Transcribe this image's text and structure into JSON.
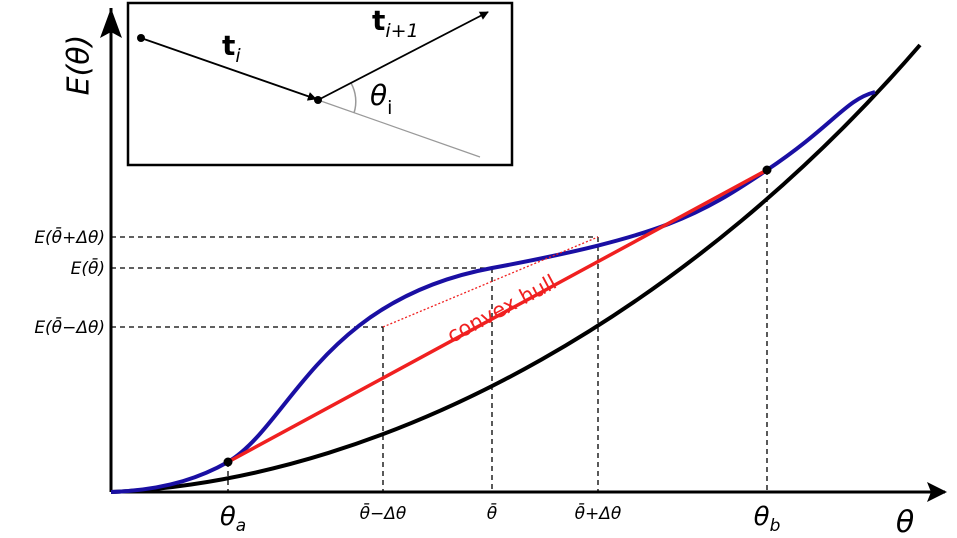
{
  "axes": {
    "y_title": "E(θ)",
    "x_title": "θ"
  },
  "y_labels": [
    "E(θ̄+Δθ)",
    "E(θ̄)",
    "E(θ̄−Δθ)"
  ],
  "x_labels": [
    {
      "base": "θ",
      "sub": "a"
    },
    "θ̄−Δθ",
    "θ̄",
    "θ̄+Δθ",
    {
      "base": "θ",
      "sub": "b"
    }
  ],
  "annotation": "convex hull",
  "inset": {
    "vector_1": {
      "base": "t",
      "sub": "i"
    },
    "vector_2": {
      "base": "t",
      "sub": "i+1"
    },
    "angle": {
      "base": "θ",
      "sub": "i"
    }
  }
}
